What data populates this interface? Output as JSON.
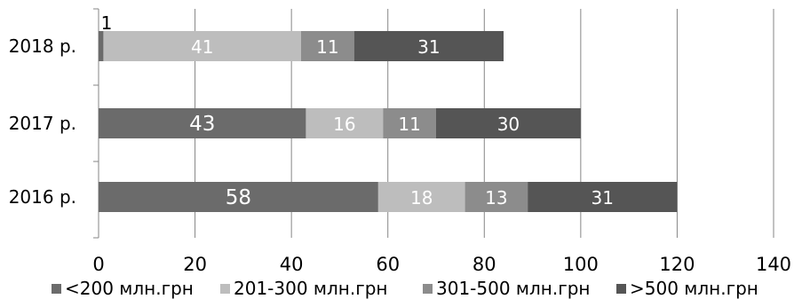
{
  "chart_data": {
    "type": "bar",
    "orientation": "horizontal",
    "stacked": true,
    "title": "",
    "xlabel": "",
    "ylabel": "",
    "categories": [
      "2018 р.",
      "2017 р.",
      "2016 р."
    ],
    "series": [
      {
        "name": "<200 млн.грн",
        "values": [
          1,
          43,
          58
        ],
        "color": "#6b6b6b"
      },
      {
        "name": "201-300 млн.грн",
        "values": [
          41,
          16,
          18
        ],
        "color": "#bdbdbd"
      },
      {
        "name": "301-500 млн.грн",
        "values": [
          11,
          11,
          13
        ],
        "color": "#8c8c8c"
      },
      {
        "name": ">500 млн.грн",
        "values": [
          31,
          30,
          31
        ],
        "color": "#555555"
      }
    ],
    "xlim": [
      0,
      140
    ],
    "xticks": [
      0,
      20,
      40,
      60,
      80,
      100,
      120,
      140
    ],
    "grid": true,
    "legend_position": "bottom"
  }
}
